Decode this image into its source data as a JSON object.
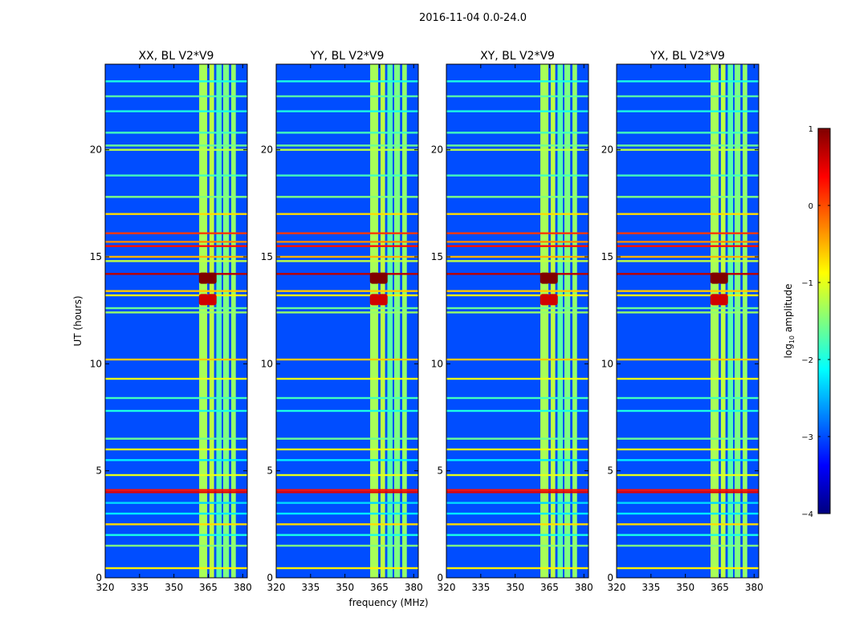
{
  "chart_data": {
    "type": "heatmap",
    "suptitle": "2016-11-04 0.0-24.0",
    "xlabel": "frequency (MHz)",
    "ylabel": "UT (hours)",
    "xlim": [
      320,
      382
    ],
    "ylim": [
      0,
      24
    ],
    "xticks": [
      320,
      335,
      350,
      365,
      380
    ],
    "xtick_labels": [
      "320",
      "335",
      "350",
      "365",
      "380"
    ],
    "yticks": [
      0,
      5,
      10,
      15,
      20
    ],
    "ytick_labels": [
      "0",
      "5",
      "10",
      "15",
      "20"
    ],
    "panels": [
      {
        "title": "XX, BL V2*V9"
      },
      {
        "title": "YY, BL V2*V9"
      },
      {
        "title": "XY, BL V2*V9"
      },
      {
        "title": "YX, BL V2*V9"
      }
    ],
    "colorbar": {
      "label": "log10 amplitude",
      "label_text": "log",
      "label_sub": "10",
      "label_rest": " amplitude",
      "range": [
        -4,
        1
      ],
      "ticks": [
        1,
        0,
        -1,
        -2,
        -3,
        -4
      ],
      "tick_labels": [
        "1",
        "0",
        "−1",
        "−2",
        "−3",
        "−4"
      ],
      "colormap": "jet",
      "colors": [
        "#00007f",
        "#0000ff",
        "#007fff",
        "#00ffff",
        "#7fff7f",
        "#ffff00",
        "#ff7f00",
        "#ff0000",
        "#7f0000"
      ]
    },
    "background_level": -3.0,
    "vertical_bands_MHz": [
      {
        "from": 361,
        "to": 364.5,
        "level": -1.3
      },
      {
        "from": 365.5,
        "to": 367.5,
        "level": -1.2
      },
      {
        "from": 368.5,
        "to": 370.8,
        "level": -1.7
      },
      {
        "from": 371.5,
        "to": 374.0,
        "level": -1.5
      },
      {
        "from": 375.0,
        "to": 377.0,
        "level": -1.4
      }
    ],
    "horizontal_rfi_UT": [
      {
        "t": 0.45,
        "level": -0.8
      },
      {
        "t": 1.5,
        "level": -1.5
      },
      {
        "t": 2.0,
        "level": -2.0
      },
      {
        "t": 2.5,
        "level": -0.7
      },
      {
        "t": 3.0,
        "level": -2.2
      },
      {
        "t": 3.5,
        "level": -2.3
      },
      {
        "t": 4.0,
        "level": 0.5
      },
      {
        "t": 4.1,
        "level": 0.3
      },
      {
        "t": 4.8,
        "level": -1.0
      },
      {
        "t": 5.5,
        "level": -2.2
      },
      {
        "t": 6.0,
        "level": -1.0
      },
      {
        "t": 6.5,
        "level": -1.6
      },
      {
        "t": 7.8,
        "level": -2.0
      },
      {
        "t": 8.4,
        "level": -1.8
      },
      {
        "t": 9.3,
        "level": -1.0
      },
      {
        "t": 10.2,
        "level": -0.6
      },
      {
        "t": 12.4,
        "level": -1.4
      },
      {
        "t": 12.6,
        "level": -1.6
      },
      {
        "t": 13.2,
        "level": -0.8
      },
      {
        "t": 13.4,
        "level": -0.6
      },
      {
        "t": 14.2,
        "level": 0.7
      },
      {
        "t": 14.8,
        "level": -1.2
      },
      {
        "t": 15.0,
        "level": -0.5
      },
      {
        "t": 15.5,
        "level": 0.3
      },
      {
        "t": 15.7,
        "level": -0.3
      },
      {
        "t": 16.1,
        "level": 0.1
      },
      {
        "t": 17.0,
        "level": -0.7
      },
      {
        "t": 17.8,
        "level": -1.5
      },
      {
        "t": 18.8,
        "level": -1.8
      },
      {
        "t": 20.0,
        "level": -1.2
      },
      {
        "t": 20.2,
        "level": -1.6
      },
      {
        "t": 20.8,
        "level": -1.8
      },
      {
        "t": 21.8,
        "level": -2.0
      },
      {
        "t": 22.5,
        "level": -1.7
      },
      {
        "t": 23.2,
        "level": -2.0
      }
    ],
    "bright_blobs": [
      {
        "f": 363,
        "t": 14.0,
        "level": 1.0
      },
      {
        "f": 366.5,
        "t": 14.0,
        "level": 1.0
      },
      {
        "f": 363,
        "t": 13.0,
        "level": 0.6
      },
      {
        "f": 366.5,
        "t": 13.0,
        "level": 0.6
      }
    ]
  }
}
